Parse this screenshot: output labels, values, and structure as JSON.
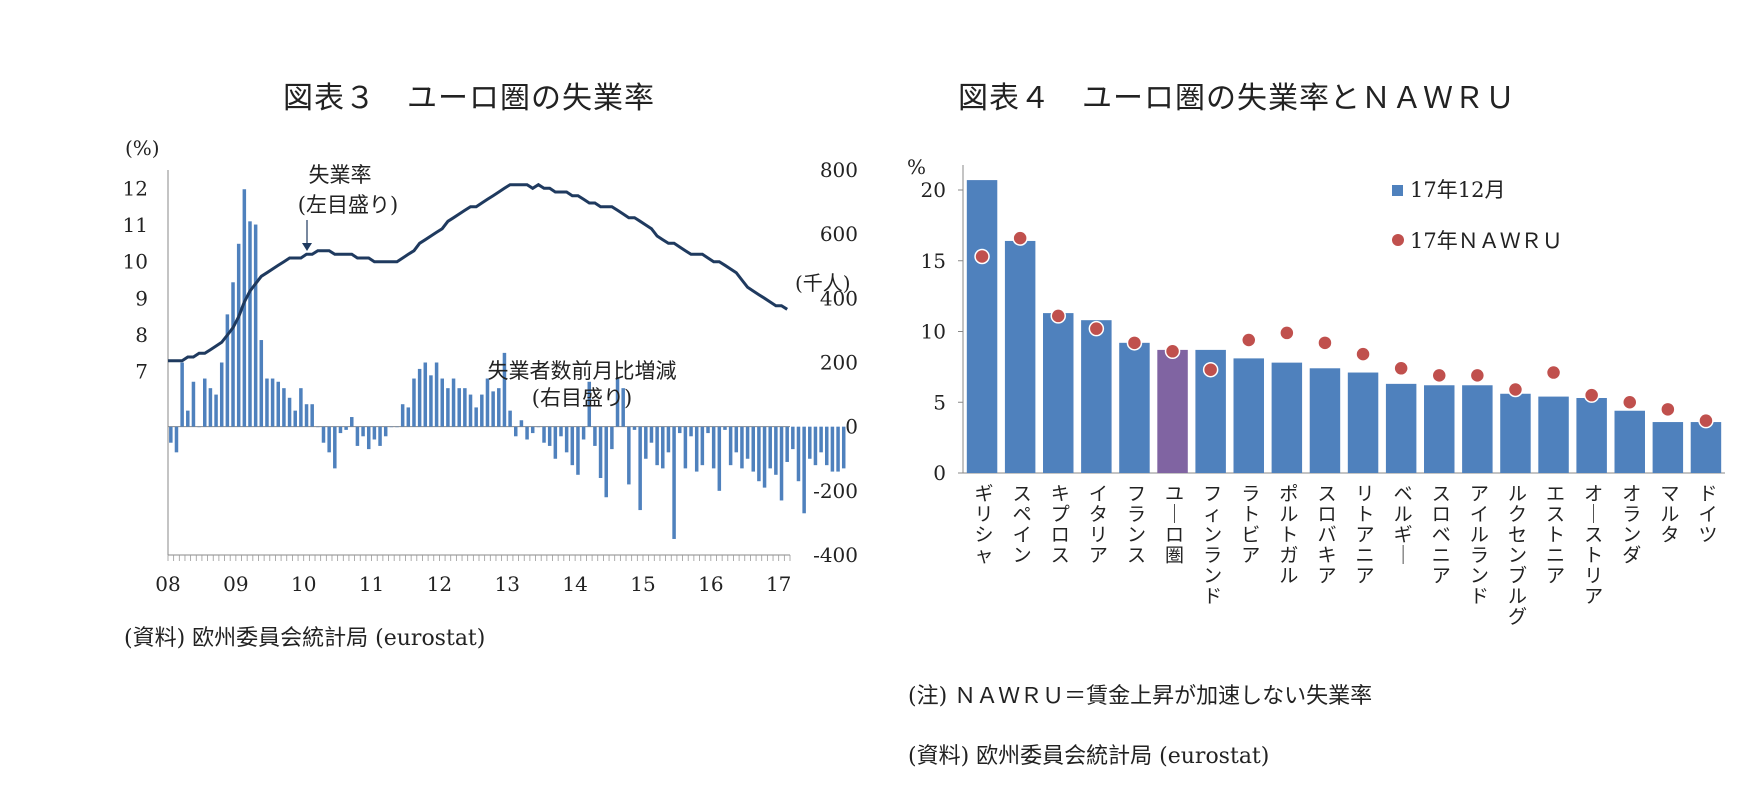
{
  "chart_data": [
    {
      "type": "line+bar",
      "title": "図表３　ユーロ圏の失業率",
      "y_left_unit": "(%)",
      "y_right_unit": "(千人)",
      "y_left_ticks": [
        "12",
        "11",
        "10",
        "9",
        "8",
        "7"
      ],
      "y_right_ticks": [
        "800",
        "600",
        "400",
        "200",
        "0",
        "-200",
        "-400"
      ],
      "ylim_left": [
        2,
        12.5
      ],
      "ylim_right": [
        -400,
        800
      ],
      "x_tick_labels": [
        "08",
        "09",
        "10",
        "11",
        "12",
        "13",
        "14",
        "15",
        "16",
        "17"
      ],
      "line_label_1": "失業率",
      "line_label_2": "(左目盛り)",
      "bar_label_1": "失業者数前月比増減",
      "bar_label_2": "(右目盛り)",
      "series": [
        {
          "name": "失業率",
          "axis": "left",
          "values": [
            7.3,
            7.3,
            7.3,
            7.4,
            7.4,
            7.5,
            7.5,
            7.6,
            7.7,
            7.8,
            8.0,
            8.2,
            8.5,
            8.9,
            9.2,
            9.4,
            9.6,
            9.7,
            9.8,
            9.9,
            10.0,
            10.1,
            10.1,
            10.1,
            10.2,
            10.2,
            10.3,
            10.3,
            10.3,
            10.2,
            10.2,
            10.2,
            10.2,
            10.1,
            10.1,
            10.1,
            10.0,
            10.0,
            10.0,
            10.0,
            10.0,
            10.1,
            10.2,
            10.3,
            10.5,
            10.6,
            10.7,
            10.8,
            10.9,
            11.1,
            11.2,
            11.3,
            11.4,
            11.5,
            11.5,
            11.6,
            11.7,
            11.8,
            11.9,
            12.0,
            12.1,
            12.1,
            12.1,
            12.1,
            12.0,
            12.1,
            12.0,
            12.0,
            11.9,
            11.9,
            11.9,
            11.8,
            11.8,
            11.7,
            11.6,
            11.6,
            11.5,
            11.5,
            11.5,
            11.4,
            11.3,
            11.2,
            11.2,
            11.1,
            11.0,
            10.9,
            10.7,
            10.6,
            10.5,
            10.5,
            10.4,
            10.3,
            10.2,
            10.2,
            10.2,
            10.1,
            10.0,
            10.0,
            9.9,
            9.8,
            9.7,
            9.5,
            9.3,
            9.2,
            9.1,
            9.0,
            8.9,
            8.8,
            8.8,
            8.7
          ]
        },
        {
          "name": "失業者数前月比増減",
          "axis": "right",
          "values": [
            -50,
            -80,
            200,
            50,
            140,
            0,
            150,
            120,
            100,
            200,
            350,
            450,
            570,
            740,
            640,
            630,
            270,
            150,
            150,
            140,
            120,
            90,
            50,
            120,
            70,
            70,
            0,
            -50,
            -80,
            -130,
            -20,
            -10,
            30,
            -60,
            -30,
            -70,
            -40,
            -60,
            -30,
            0,
            0,
            70,
            60,
            150,
            180,
            200,
            160,
            200,
            150,
            120,
            150,
            120,
            120,
            100,
            60,
            100,
            150,
            110,
            120,
            230,
            50,
            -30,
            20,
            -40,
            -20,
            0,
            -50,
            -60,
            -100,
            -30,
            -80,
            -120,
            -150,
            -40,
            140,
            -60,
            -160,
            -220,
            -70,
            150,
            120,
            -180,
            -10,
            -260,
            -100,
            -50,
            -120,
            -130,
            -80,
            -350,
            -20,
            -130,
            -30,
            -140,
            -120,
            -20,
            -130,
            -200,
            -10,
            -120,
            -80,
            -130,
            -100,
            -140,
            -170,
            -190,
            -130,
            -150,
            -230,
            -110,
            -70,
            -170,
            -270,
            -100,
            -120,
            -80,
            -120,
            -140,
            -140,
            -130
          ]
        }
      ]
    },
    {
      "type": "bar+scatter",
      "title": "図表４　ユーロ圏の失業率とＮＡＷＲＵ",
      "y_unit": "%",
      "y_ticks": [
        "20",
        "15",
        "10",
        "5",
        "0"
      ],
      "ylim": [
        0,
        20
      ],
      "categories": [
        "ギリシャ",
        "スペイン",
        "キプロス",
        "イタリア",
        "フランス",
        "ユーロ圏",
        "フィンランド",
        "ラトビア",
        "ポルトガル",
        "スロバキア",
        "リトアニア",
        "ベルギー",
        "スロベニア",
        "アイルランド",
        "ルクセンブルグ",
        "エストニア",
        "オーストリア",
        "オランダ",
        "マルタ",
        "ドイツ"
      ],
      "series": [
        {
          "name": "17年12月",
          "type": "bar",
          "color": "#4f81bd",
          "highlight_color": "#8064a2",
          "highlight_index": 5,
          "values": [
            20.7,
            16.4,
            11.3,
            10.8,
            9.2,
            8.7,
            8.7,
            8.1,
            7.8,
            7.4,
            7.1,
            6.3,
            6.2,
            6.2,
            5.6,
            5.4,
            5.3,
            4.4,
            3.6,
            3.6
          ]
        },
        {
          "name": "17年ＮＡＷＲＵ",
          "type": "scatter",
          "color": "#c0504d",
          "values": [
            15.3,
            16.6,
            11.1,
            10.2,
            9.2,
            8.6,
            7.3,
            9.4,
            9.9,
            9.2,
            8.4,
            7.4,
            6.9,
            6.9,
            5.9,
            7.1,
            5.5,
            5.0,
            4.5,
            3.7
          ]
        }
      ]
    }
  ],
  "notes": {
    "fig3_source": "(資料) 欧州委員会統計局 (eurostat)",
    "fig4_note": "(注) ＮＡＷＲＵ＝賃金上昇が加速しない失業率",
    "fig4_source": "(資料) 欧州委員会統計局 (eurostat)"
  }
}
